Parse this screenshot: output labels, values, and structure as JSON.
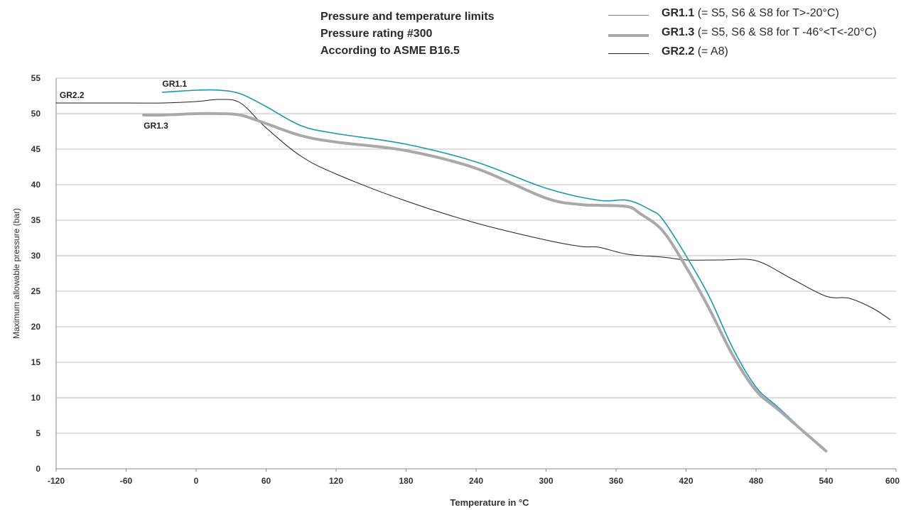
{
  "title_lines": [
    "Pressure and temperature limits",
    "Pressure rating #300",
    "According to ASME B16.5"
  ],
  "legend": [
    {
      "name": "GR1.1",
      "desc": " (= S5, S6 & S8 for T>-20°C)",
      "color": "#1c97ad",
      "width": 1.6
    },
    {
      "name": "GR1.3",
      "desc": " (= S5, S6 & S8 for T -46°<T<-20°C)",
      "color": "#a9a9a9",
      "width": 4
    },
    {
      "name": "GR2.2",
      "desc": " (= A8)",
      "color": "#1f1f1f",
      "width": 1
    }
  ],
  "chart_data": {
    "type": "line",
    "xlabel": "Temperature in °C",
    "ylabel": "Maximum allowable pressure (bar)",
    "xlim": [
      -120,
      600
    ],
    "ylim": [
      0,
      55
    ],
    "x_ticks": [
      "-120",
      "-60",
      "0",
      "60",
      "120",
      "180",
      "240",
      "300",
      "360",
      "420",
      "480",
      "540",
      "600"
    ],
    "y_ticks": [
      "0",
      "5",
      "10",
      "15",
      "20",
      "25",
      "30",
      "35",
      "40",
      "45",
      "50",
      "55"
    ],
    "grid": "horizontal",
    "series": [
      {
        "name": "GR2.2",
        "color": "#1f1f1f",
        "width": 1,
        "x": [
          -120,
          -60,
          -29,
          0,
          20,
          38,
          60,
          90,
          120,
          180,
          240,
          300,
          330,
          345,
          370,
          400,
          420,
          450,
          480,
          510,
          540,
          560,
          580,
          595
        ],
        "y": [
          51.5,
          51.5,
          51.5,
          51.7,
          52.0,
          51.5,
          48.0,
          44.0,
          41.5,
          37.7,
          34.6,
          32.2,
          31.3,
          31.2,
          30.2,
          29.8,
          29.4,
          29.4,
          29.3,
          26.8,
          24.3,
          24.0,
          22.6,
          21.0
        ]
      },
      {
        "name": "GR1.1",
        "color": "#1c97ad",
        "width": 1.6,
        "x": [
          -29,
          0,
          20,
          38,
          60,
          90,
          120,
          180,
          240,
          300,
          345,
          370,
          390,
          400,
          420,
          440,
          460,
          480,
          500,
          540
        ],
        "y": [
          53.0,
          53.3,
          53.3,
          52.8,
          51.0,
          48.3,
          47.2,
          45.7,
          43.2,
          39.5,
          37.8,
          37.8,
          36.4,
          35.1,
          30.0,
          24.2,
          17.0,
          11.5,
          8.5,
          2.4
        ]
      },
      {
        "name": "GR1.3",
        "color": "#a9a9a9",
        "width": 4,
        "x": [
          -45,
          -29,
          0,
          20,
          38,
          60,
          90,
          120,
          180,
          240,
          300,
          330,
          345,
          370,
          380,
          400,
          420,
          440,
          460,
          480,
          500,
          540
        ],
        "y": [
          49.8,
          49.8,
          50.0,
          50.0,
          49.8,
          48.6,
          46.9,
          46.0,
          44.8,
          42.3,
          38.1,
          37.2,
          37.1,
          36.9,
          36.0,
          33.5,
          28.4,
          22.5,
          16.0,
          11.0,
          8.2,
          2.5
        ]
      }
    ],
    "annotations": [
      {
        "text": "GR1.1",
        "x": -29,
        "y": 53.8
      },
      {
        "text": "GR2.2",
        "x": -117,
        "y": 52.2
      },
      {
        "text": "GR1.3",
        "x": -45,
        "y": 47.9
      }
    ]
  }
}
